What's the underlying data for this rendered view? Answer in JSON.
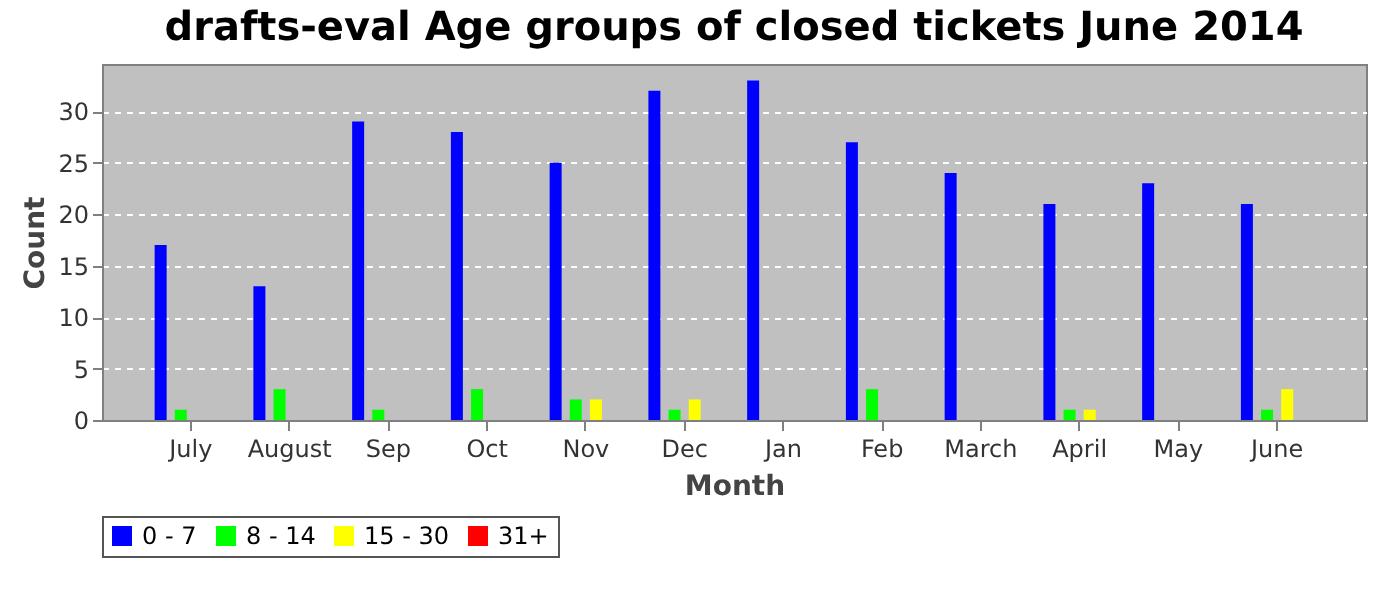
{
  "chart_data": {
    "type": "bar",
    "title": "drafts-eval Age groups of closed tickets June 2014",
    "xlabel": "Month",
    "ylabel": "Count",
    "categories": [
      "July",
      "August",
      "Sep",
      "Oct",
      "Nov",
      "Dec",
      "Jan",
      "Feb",
      "March",
      "April",
      "May",
      "June"
    ],
    "series": [
      {
        "name": "0 - 7",
        "color": "#0000ff",
        "values": [
          17,
          13,
          29,
          28,
          25,
          32,
          33,
          27,
          24,
          21,
          23,
          21
        ]
      },
      {
        "name": "8 - 14",
        "color": "#00ff00",
        "values": [
          1,
          3,
          1,
          3,
          2,
          1,
          0,
          3,
          0,
          1,
          0,
          1
        ]
      },
      {
        "name": "15 - 30",
        "color": "#ffff00",
        "values": [
          0,
          0,
          0,
          0,
          2,
          2,
          0,
          0,
          0,
          1,
          0,
          3
        ]
      },
      {
        "name": "31+",
        "color": "#ff0000",
        "values": [
          0,
          0,
          0,
          0,
          0,
          0,
          0,
          0,
          0,
          0,
          0,
          0
        ]
      }
    ],
    "ylim": [
      0,
      34.6
    ],
    "yticks": [
      0,
      5,
      10,
      15,
      20,
      25,
      30
    ],
    "grid": "y",
    "legend": "bottom"
  }
}
